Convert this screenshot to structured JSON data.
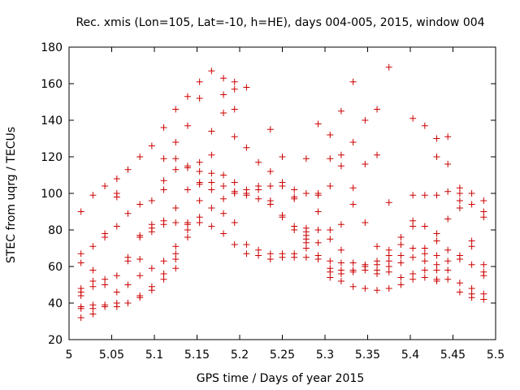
{
  "chart_data": {
    "type": "scatter",
    "title": "Rec. xmis (Lon=105, Lat=-10, h=HE), days 004-005, 2015, window 004",
    "xlabel": "GPS time / Days of year 2015",
    "ylabel": "STEC from uqrg / TECUs",
    "xlim": [
      5,
      5.5
    ],
    "ylim": [
      20,
      180
    ],
    "x_ticks": [
      5,
      5.05,
      5.1,
      5.15,
      5.2,
      5.25,
      5.3,
      5.35,
      5.4,
      5.45,
      5.5
    ],
    "x_tick_labels": [
      "5",
      "5.05",
      "5.1",
      "5.15",
      "5.2",
      "5.25",
      "5.3",
      "5.35",
      "5.4",
      "5.45",
      "5.5"
    ],
    "y_ticks": [
      20,
      40,
      60,
      80,
      100,
      120,
      140,
      160,
      180
    ],
    "y_tick_labels": [
      "20",
      "40",
      "60",
      "80",
      "100",
      "120",
      "140",
      "160",
      "180"
    ],
    "marker": "plus",
    "marker_color": "#cc0000",
    "grid": false,
    "points": [
      [
        5.014,
        90
      ],
      [
        5.014,
        67
      ],
      [
        5.014,
        62
      ],
      [
        5.014,
        48
      ],
      [
        5.014,
        46
      ],
      [
        5.014,
        44
      ],
      [
        5.014,
        38
      ],
      [
        5.014,
        37
      ],
      [
        5.014,
        32
      ],
      [
        5.028,
        99
      ],
      [
        5.028,
        71
      ],
      [
        5.028,
        58
      ],
      [
        5.028,
        52
      ],
      [
        5.028,
        49
      ],
      [
        5.028,
        39
      ],
      [
        5.028,
        37
      ],
      [
        5.028,
        34
      ],
      [
        5.042,
        104
      ],
      [
        5.042,
        78
      ],
      [
        5.042,
        76
      ],
      [
        5.042,
        53
      ],
      [
        5.042,
        50
      ],
      [
        5.042,
        39
      ],
      [
        5.042,
        38
      ],
      [
        5.056,
        108
      ],
      [
        5.056,
        100
      ],
      [
        5.056,
        98
      ],
      [
        5.056,
        82
      ],
      [
        5.056,
        55
      ],
      [
        5.056,
        46
      ],
      [
        5.056,
        40
      ],
      [
        5.056,
        38
      ],
      [
        5.069,
        113
      ],
      [
        5.069,
        89
      ],
      [
        5.069,
        65
      ],
      [
        5.069,
        63
      ],
      [
        5.069,
        50
      ],
      [
        5.069,
        40
      ],
      [
        5.083,
        120
      ],
      [
        5.083,
        94
      ],
      [
        5.083,
        77
      ],
      [
        5.083,
        76
      ],
      [
        5.083,
        64
      ],
      [
        5.083,
        55
      ],
      [
        5.083,
        44
      ],
      [
        5.083,
        43
      ],
      [
        5.097,
        126
      ],
      [
        5.097,
        96
      ],
      [
        5.097,
        83
      ],
      [
        5.097,
        81
      ],
      [
        5.097,
        79
      ],
      [
        5.097,
        59
      ],
      [
        5.097,
        49
      ],
      [
        5.097,
        47
      ],
      [
        5.111,
        136
      ],
      [
        5.111,
        119
      ],
      [
        5.111,
        107
      ],
      [
        5.111,
        102
      ],
      [
        5.111,
        85
      ],
      [
        5.111,
        83
      ],
      [
        5.111,
        63
      ],
      [
        5.111,
        56
      ],
      [
        5.111,
        53
      ],
      [
        5.125,
        146
      ],
      [
        5.125,
        128
      ],
      [
        5.125,
        119
      ],
      [
        5.125,
        113
      ],
      [
        5.125,
        92
      ],
      [
        5.125,
        84
      ],
      [
        5.125,
        71
      ],
      [
        5.125,
        67
      ],
      [
        5.125,
        64
      ],
      [
        5.125,
        59
      ],
      [
        5.139,
        153
      ],
      [
        5.139,
        137
      ],
      [
        5.139,
        115
      ],
      [
        5.139,
        114
      ],
      [
        5.139,
        102
      ],
      [
        5.139,
        84
      ],
      [
        5.139,
        83
      ],
      [
        5.139,
        80
      ],
      [
        5.139,
        76
      ],
      [
        5.153,
        161
      ],
      [
        5.153,
        152
      ],
      [
        5.153,
        117
      ],
      [
        5.153,
        112
      ],
      [
        5.153,
        106
      ],
      [
        5.153,
        105
      ],
      [
        5.153,
        96
      ],
      [
        5.153,
        87
      ],
      [
        5.153,
        84
      ],
      [
        5.167,
        167
      ],
      [
        5.167,
        134
      ],
      [
        5.167,
        121
      ],
      [
        5.167,
        111
      ],
      [
        5.167,
        106
      ],
      [
        5.167,
        102
      ],
      [
        5.167,
        92
      ],
      [
        5.167,
        82
      ],
      [
        5.181,
        163
      ],
      [
        5.181,
        154
      ],
      [
        5.181,
        144
      ],
      [
        5.181,
        110
      ],
      [
        5.181,
        104
      ],
      [
        5.181,
        97
      ],
      [
        5.181,
        89
      ],
      [
        5.181,
        78
      ],
      [
        5.194,
        161
      ],
      [
        5.194,
        157
      ],
      [
        5.194,
        146
      ],
      [
        5.194,
        131
      ],
      [
        5.194,
        106
      ],
      [
        5.194,
        101
      ],
      [
        5.194,
        100
      ],
      [
        5.194,
        84
      ],
      [
        5.194,
        72
      ],
      [
        5.208,
        158
      ],
      [
        5.208,
        125
      ],
      [
        5.208,
        102
      ],
      [
        5.208,
        100
      ],
      [
        5.208,
        99
      ],
      [
        5.208,
        72
      ],
      [
        5.208,
        67
      ],
      [
        5.222,
        117
      ],
      [
        5.222,
        104
      ],
      [
        5.222,
        102
      ],
      [
        5.222,
        97
      ],
      [
        5.222,
        69
      ],
      [
        5.222,
        66
      ],
      [
        5.236,
        135
      ],
      [
        5.236,
        112
      ],
      [
        5.236,
        104
      ],
      [
        5.236,
        96
      ],
      [
        5.236,
        94
      ],
      [
        5.236,
        67
      ],
      [
        5.236,
        64
      ],
      [
        5.25,
        120
      ],
      [
        5.25,
        106
      ],
      [
        5.25,
        104
      ],
      [
        5.25,
        88
      ],
      [
        5.25,
        87
      ],
      [
        5.25,
        67
      ],
      [
        5.25,
        65
      ],
      [
        5.264,
        102
      ],
      [
        5.264,
        98
      ],
      [
        5.264,
        97
      ],
      [
        5.264,
        82
      ],
      [
        5.264,
        80
      ],
      [
        5.264,
        67
      ],
      [
        5.264,
        65
      ],
      [
        5.278,
        119
      ],
      [
        5.278,
        100
      ],
      [
        5.278,
        81
      ],
      [
        5.278,
        79
      ],
      [
        5.278,
        77
      ],
      [
        5.278,
        75
      ],
      [
        5.278,
        73
      ],
      [
        5.278,
        70
      ],
      [
        5.278,
        65
      ],
      [
        5.292,
        138
      ],
      [
        5.292,
        100
      ],
      [
        5.292,
        99
      ],
      [
        5.292,
        90
      ],
      [
        5.292,
        80
      ],
      [
        5.292,
        73
      ],
      [
        5.292,
        66
      ],
      [
        5.292,
        64
      ],
      [
        5.306,
        132
      ],
      [
        5.306,
        119
      ],
      [
        5.306,
        104
      ],
      [
        5.306,
        80
      ],
      [
        5.306,
        75
      ],
      [
        5.306,
        63
      ],
      [
        5.306,
        59
      ],
      [
        5.306,
        57
      ],
      [
        5.306,
        54
      ],
      [
        5.319,
        145
      ],
      [
        5.319,
        121
      ],
      [
        5.319,
        115
      ],
      [
        5.319,
        83
      ],
      [
        5.319,
        69
      ],
      [
        5.319,
        62
      ],
      [
        5.319,
        58
      ],
      [
        5.319,
        56
      ],
      [
        5.319,
        52
      ],
      [
        5.333,
        161
      ],
      [
        5.333,
        128
      ],
      [
        5.333,
        103
      ],
      [
        5.333,
        94
      ],
      [
        5.333,
        62
      ],
      [
        5.333,
        58
      ],
      [
        5.333,
        57
      ],
      [
        5.333,
        49
      ],
      [
        5.347,
        140
      ],
      [
        5.347,
        116
      ],
      [
        5.347,
        84
      ],
      [
        5.347,
        61
      ],
      [
        5.347,
        60
      ],
      [
        5.347,
        58
      ],
      [
        5.347,
        48
      ],
      [
        5.361,
        146
      ],
      [
        5.361,
        121
      ],
      [
        5.361,
        71
      ],
      [
        5.361,
        63
      ],
      [
        5.361,
        61
      ],
      [
        5.361,
        58
      ],
      [
        5.361,
        56
      ],
      [
        5.361,
        47
      ],
      [
        5.375,
        169
      ],
      [
        5.375,
        95
      ],
      [
        5.375,
        69
      ],
      [
        5.375,
        66
      ],
      [
        5.375,
        63
      ],
      [
        5.375,
        60
      ],
      [
        5.375,
        57
      ],
      [
        5.375,
        48
      ],
      [
        5.389,
        76
      ],
      [
        5.389,
        72
      ],
      [
        5.389,
        66
      ],
      [
        5.389,
        62
      ],
      [
        5.389,
        54
      ],
      [
        5.389,
        50
      ],
      [
        5.403,
        141
      ],
      [
        5.403,
        99
      ],
      [
        5.403,
        85
      ],
      [
        5.403,
        82
      ],
      [
        5.403,
        70
      ],
      [
        5.403,
        65
      ],
      [
        5.403,
        56
      ],
      [
        5.403,
        53
      ],
      [
        5.417,
        137
      ],
      [
        5.417,
        99
      ],
      [
        5.417,
        82
      ],
      [
        5.417,
        70
      ],
      [
        5.417,
        67
      ],
      [
        5.417,
        63
      ],
      [
        5.417,
        58
      ],
      [
        5.417,
        54
      ],
      [
        5.431,
        130
      ],
      [
        5.431,
        120
      ],
      [
        5.431,
        99
      ],
      [
        5.431,
        78
      ],
      [
        5.431,
        74
      ],
      [
        5.431,
        66
      ],
      [
        5.431,
        61
      ],
      [
        5.431,
        58
      ],
      [
        5.431,
        53
      ],
      [
        5.431,
        52
      ],
      [
        5.444,
        131
      ],
      [
        5.444,
        116
      ],
      [
        5.444,
        101
      ],
      [
        5.444,
        86
      ],
      [
        5.444,
        69
      ],
      [
        5.444,
        63
      ],
      [
        5.444,
        58
      ],
      [
        5.444,
        53
      ],
      [
        5.458,
        103
      ],
      [
        5.458,
        100
      ],
      [
        5.458,
        96
      ],
      [
        5.458,
        92
      ],
      [
        5.458,
        66
      ],
      [
        5.458,
        64
      ],
      [
        5.458,
        51
      ],
      [
        5.458,
        46
      ],
      [
        5.472,
        100
      ],
      [
        5.472,
        94
      ],
      [
        5.472,
        74
      ],
      [
        5.472,
        71
      ],
      [
        5.472,
        61
      ],
      [
        5.472,
        48
      ],
      [
        5.472,
        45
      ],
      [
        5.472,
        43
      ],
      [
        5.486,
        96
      ],
      [
        5.486,
        90
      ],
      [
        5.486,
        87
      ],
      [
        5.486,
        61
      ],
      [
        5.486,
        57
      ],
      [
        5.486,
        55
      ],
      [
        5.486,
        45
      ],
      [
        5.486,
        42
      ]
    ]
  }
}
